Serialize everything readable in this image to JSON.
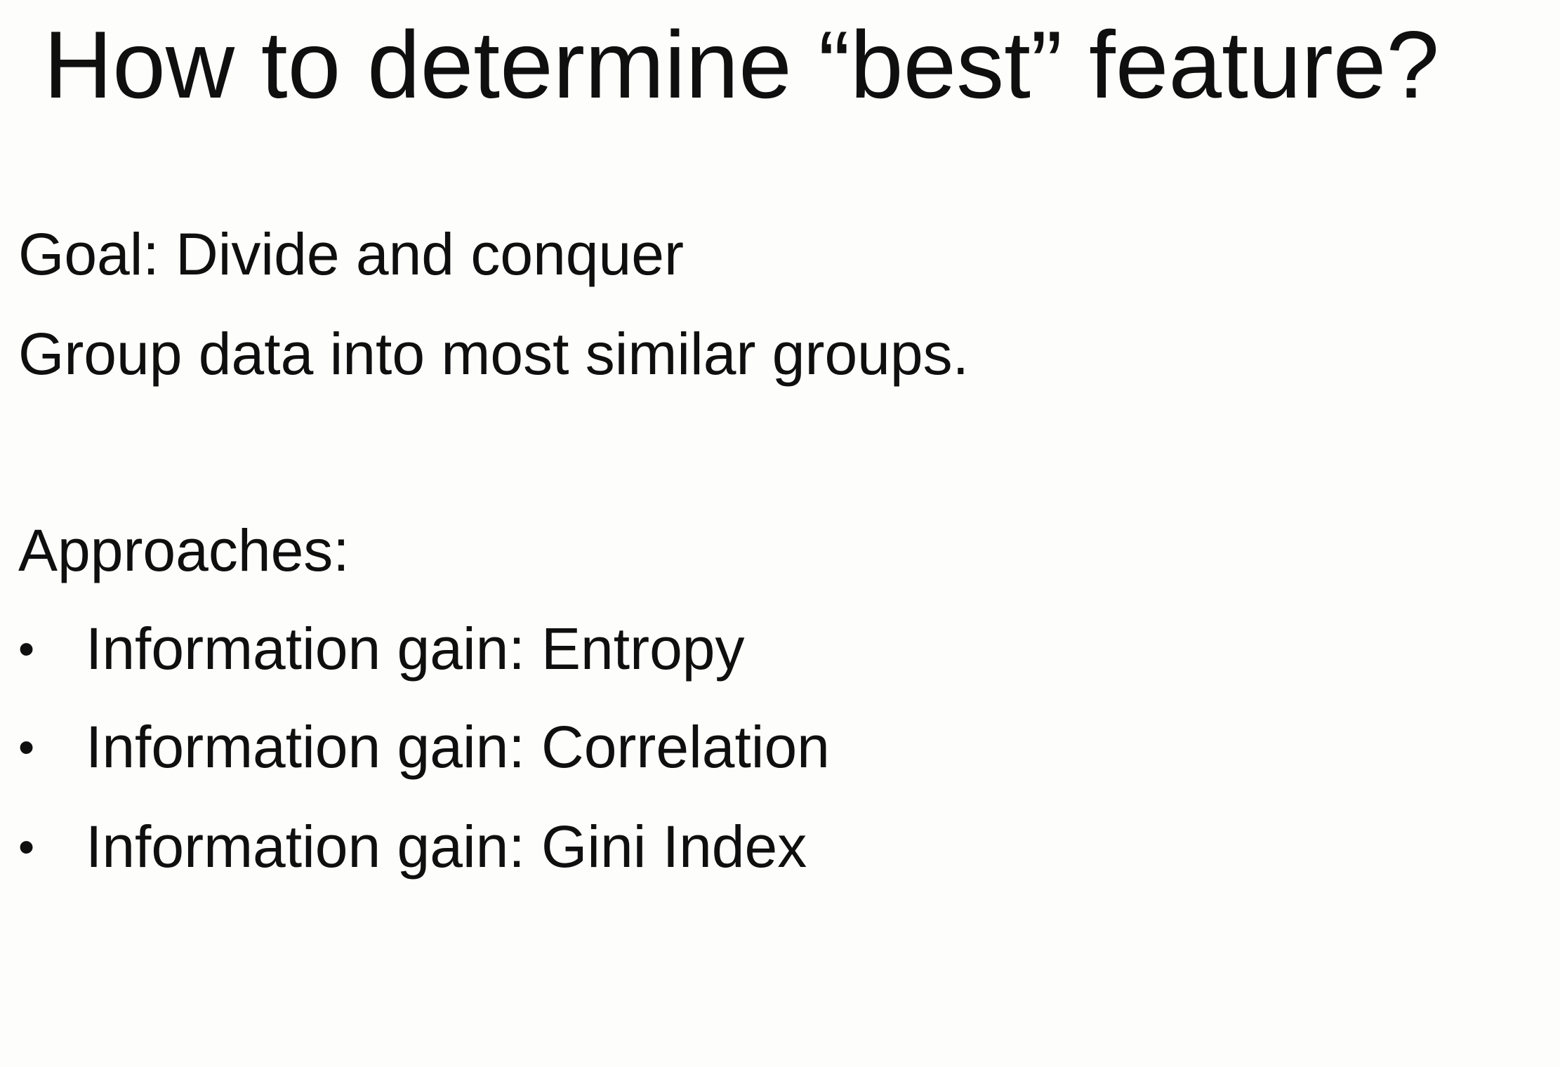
{
  "slide": {
    "title": "How to determine “best” feature?",
    "goal_line": "Goal: Divide and conquer",
    "group_line": "Group data into most similar groups.",
    "approaches_heading": "Approaches:",
    "bullet_symbol": "•",
    "approaches": [
      "Information gain: Entropy",
      "Information gain: Correlation",
      "Information gain: Gini Index"
    ]
  }
}
